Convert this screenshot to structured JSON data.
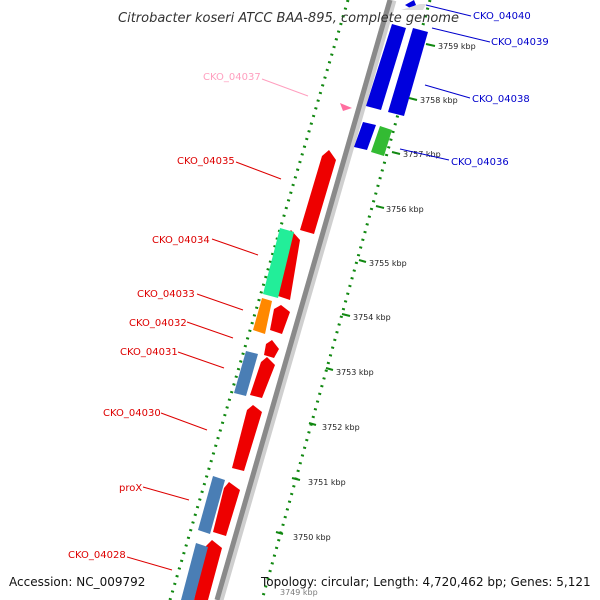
{
  "title": "Citrobacter koseri ATCC BAA-895, complete genome",
  "footer": {
    "accession": "Accession: NC_009792",
    "summary": "Topology: circular; Length: 4,720,462 bp; Genes: 5,121"
  },
  "colors": {
    "red": "#ff0000",
    "blue": "#0000ee",
    "steel": "#4a7eb5",
    "teal": "#22ee88",
    "orange": "#ff8c00",
    "green": "#33cc33",
    "pink": "#ff6fa0",
    "backbone": "#888888",
    "dots": "#118811"
  },
  "ticks": [
    {
      "label": "3759 kbp"
    },
    {
      "label": "3758 kbp"
    },
    {
      "label": "3757 kbp"
    },
    {
      "label": "3756 kbp"
    },
    {
      "label": "3755 kbp"
    },
    {
      "label": "3754 kbp"
    },
    {
      "label": "3753 kbp"
    },
    {
      "label": "3752 kbp"
    },
    {
      "label": "3751 kbp"
    },
    {
      "label": "3750 kbp"
    },
    {
      "label": "3749 kbp"
    }
  ],
  "genes_left": [
    {
      "label": "CKO_04037",
      "color": "#ff9fbf"
    },
    {
      "label": "CKO_04035",
      "color": "#dd0000"
    },
    {
      "label": "CKO_04034",
      "color": "#dd0000"
    },
    {
      "label": "CKO_04033",
      "color": "#dd0000"
    },
    {
      "label": "CKO_04032",
      "color": "#dd0000"
    },
    {
      "label": "CKO_04031",
      "color": "#dd0000"
    },
    {
      "label": "CKO_04030",
      "color": "#dd0000"
    },
    {
      "label": "proX",
      "color": "#dd0000"
    },
    {
      "label": "CKO_04028",
      "color": "#dd0000"
    }
  ],
  "genes_right": [
    {
      "label": "CKO_04040",
      "color": "#0000cc"
    },
    {
      "label": "CKO_04039",
      "color": "#0000cc"
    },
    {
      "label": "CKO_04038",
      "color": "#0000cc"
    },
    {
      "label": "CKO_04036",
      "color": "#0000cc"
    }
  ]
}
